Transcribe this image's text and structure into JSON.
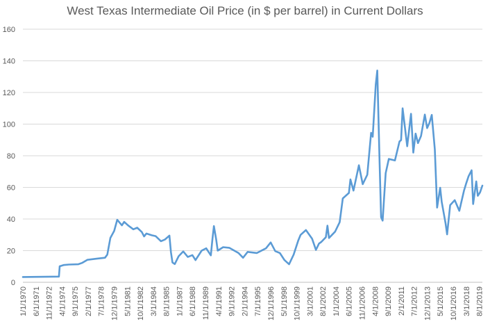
{
  "colors": {
    "series": "#5B9BD5",
    "grid": "#d9d9d9",
    "text": "#595959"
  },
  "chart_data": {
    "type": "line",
    "title": "West Texas Intermediate Oil Price (in $ per barrel) in Current Dollars",
    "xlabel": "",
    "ylabel": "",
    "ylim": [
      0,
      160
    ],
    "yticks": [
      0,
      20,
      40,
      60,
      80,
      100,
      120,
      140,
      160
    ],
    "grid": true,
    "legend": "none",
    "x_tick_labels": [
      "1/1/1970",
      "6/1/1971",
      "11/1/1972",
      "4/1/1974",
      "9/1/1975",
      "2/1/1977",
      "7/1/1978",
      "12/1/1979",
      "5/1/1981",
      "10/1/1982",
      "3/1/1984",
      "8/1/1985",
      "1/1/1987",
      "6/1/1988",
      "11/1/1989",
      "4/1/1991",
      "9/1/1992",
      "2/1/1994",
      "7/1/1995",
      "12/1/1996",
      "5/1/1998",
      "10/1/1999",
      "3/1/2001",
      "8/1/2002",
      "1/1/2004",
      "6/1/2005",
      "11/1/2006",
      "4/1/2008",
      "9/1/2009",
      "2/1/2011",
      "7/1/2012",
      "12/1/2013",
      "5/1/2015",
      "10/1/2016",
      "3/1/2018",
      "8/1/2019"
    ],
    "x_range": [
      "1970-01",
      "2019-12"
    ],
    "series": [
      {
        "x": [
          "1970-01",
          "1973-12",
          "1974-01",
          "1974-06",
          "1975-01",
          "1976-01",
          "1976-06",
          "1977-01",
          "1978-01",
          "1978-12",
          "1979-03",
          "1979-07",
          "1979-12",
          "1980-04",
          "1980-10",
          "1981-01",
          "1981-06",
          "1982-01",
          "1982-06",
          "1982-12",
          "1983-03",
          "1983-06",
          "1984-01",
          "1984-06",
          "1985-01",
          "1985-06",
          "1985-12",
          "1986-02",
          "1986-04",
          "1986-07",
          "1986-12",
          "1987-06",
          "1987-12",
          "1988-06",
          "1988-10",
          "1989-06",
          "1989-12",
          "1990-06",
          "1990-08",
          "1990-10",
          "1991-01",
          "1991-03",
          "1991-10",
          "1992-06",
          "1993-06",
          "1993-12",
          "1994-06",
          "1995-06",
          "1996-06",
          "1996-12",
          "1997-06",
          "1997-12",
          "1998-06",
          "1998-12",
          "1999-06",
          "1999-12",
          "2000-03",
          "2000-10",
          "2001-06",
          "2001-11",
          "2002-03",
          "2002-06",
          "2002-12",
          "2003-02",
          "2003-04",
          "2003-12",
          "2004-06",
          "2004-10",
          "2005-06",
          "2005-08",
          "2005-12",
          "2006-07",
          "2006-12",
          "2007-06",
          "2007-11",
          "2008-01",
          "2008-05",
          "2008-07",
          "2008-10",
          "2008-12",
          "2009-02",
          "2009-06",
          "2009-10",
          "2010-06",
          "2010-12",
          "2011-02",
          "2011-04",
          "2011-10",
          "2012-03",
          "2012-06",
          "2012-09",
          "2012-12",
          "2013-04",
          "2013-09",
          "2013-12",
          "2014-03",
          "2014-06",
          "2014-10",
          "2014-12",
          "2015-01",
          "2015-05",
          "2015-07",
          "2015-12",
          "2016-02",
          "2016-06",
          "2016-12",
          "2017-06",
          "2017-12",
          "2018-03",
          "2018-06",
          "2018-10",
          "2018-12",
          "2019-04",
          "2019-06",
          "2019-09",
          "2019-12"
        ],
        "y": [
          3.35,
          3.6,
          10.1,
          10.9,
          11.2,
          11.4,
          12.2,
          14.2,
          14.9,
          15.5,
          17.5,
          28,
          32.5,
          39.5,
          36,
          38.2,
          36,
          33.5,
          34.5,
          31.8,
          29,
          30.8,
          29.7,
          29.2,
          26,
          27,
          29.5,
          19,
          12.5,
          11.5,
          16.5,
          19.5,
          16,
          17.2,
          14,
          20,
          21.5,
          17,
          27,
          35.5,
          27,
          20,
          22.2,
          21.8,
          18.5,
          15.5,
          19.2,
          18.5,
          21.5,
          25.2,
          19.7,
          18.5,
          14,
          11.4,
          17.5,
          26.5,
          30,
          33,
          27.5,
          20.5,
          24.5,
          25.5,
          28.5,
          35.8,
          28,
          32,
          38,
          53,
          56.5,
          65,
          58,
          74,
          62,
          68,
          94.5,
          92,
          125,
          133.9,
          76,
          41.1,
          39,
          69,
          78,
          77,
          89,
          89.9,
          110,
          86,
          106.5,
          82,
          94,
          88,
          92.5,
          106,
          97.5,
          100.7,
          105.8,
          84,
          59.3,
          47.2,
          59.8,
          50.9,
          37.2,
          30.3,
          48.8,
          51.9,
          45.2,
          57.9,
          62.7,
          67,
          70.8,
          49.5,
          63.8,
          54.7,
          56.9,
          61.1
        ]
      }
    ]
  }
}
